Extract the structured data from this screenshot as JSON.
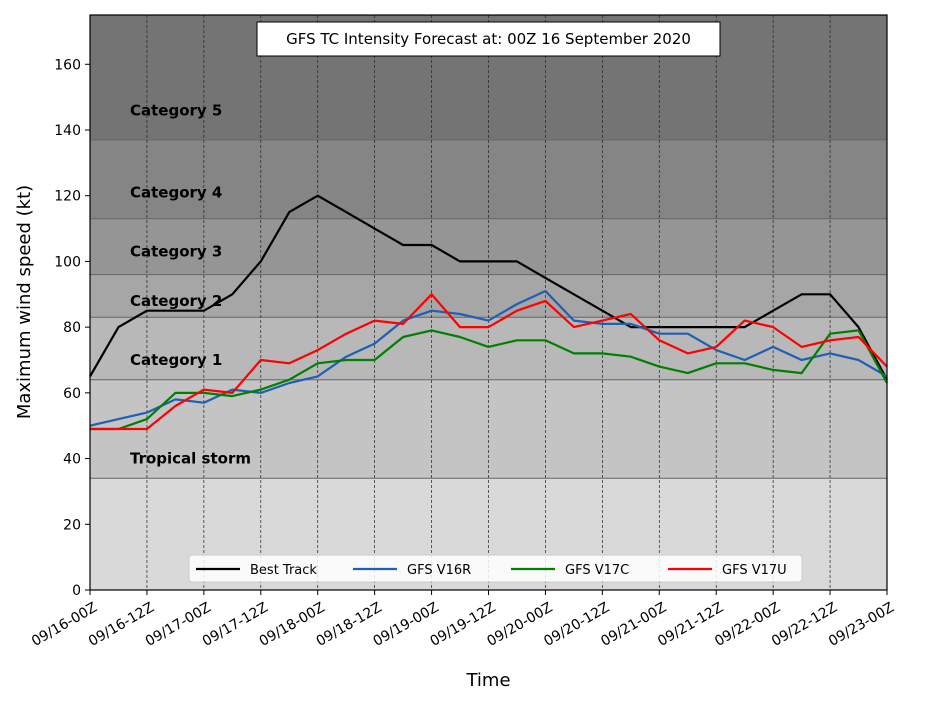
{
  "chart_data": {
    "type": "line",
    "title": "GFS TC Intensity Forecast at: 00Z 16 September 2020",
    "xlabel": "Time",
    "ylabel": "Maximum wind speed (kt)",
    "ylim": [
      0,
      175
    ],
    "yticks": [
      0,
      20,
      40,
      60,
      80,
      100,
      120,
      140,
      160
    ],
    "xticks": [
      "09/16-00Z",
      "09/16-12Z",
      "09/17-00Z",
      "09/17-12Z",
      "09/18-00Z",
      "09/18-12Z",
      "09/19-00Z",
      "09/19-12Z",
      "09/20-00Z",
      "09/20-12Z",
      "09/21-00Z",
      "09/21-12Z",
      "09/22-00Z",
      "09/22-12Z",
      "09/23-00Z"
    ],
    "x_step_hours": 6,
    "grid": "vertical dashed at x ticks",
    "legend_position": "lower-center",
    "categories_bands": [
      {
        "label": "Tropical storm",
        "from": 34,
        "to": 64,
        "color": "#c4c4c4",
        "label_y": 40
      },
      {
        "label": "Category 1",
        "from": 64,
        "to": 83,
        "color": "#b8b8b8",
        "label_y": 70
      },
      {
        "label": "Category 2",
        "from": 83,
        "to": 96,
        "color": "#a6a6a6",
        "label_y": 88
      },
      {
        "label": "Category 3",
        "from": 96,
        "to": 113,
        "color": "#959595",
        "label_y": 103
      },
      {
        "label": "Category 4",
        "from": 113,
        "to": 137,
        "color": "#858585",
        "label_y": 121
      },
      {
        "label": "Category 5",
        "from": 137,
        "to": 175,
        "color": "#747474",
        "label_y": 146
      }
    ],
    "below_ts_color": "#d9d9d9",
    "series": [
      {
        "name": "Best Track",
        "color": "#000000",
        "values": [
          65,
          80,
          85,
          85,
          85,
          90,
          100,
          115,
          120,
          115,
          110,
          105,
          105,
          100,
          100,
          100,
          95,
          90,
          85,
          80,
          80,
          80,
          80,
          80,
          85,
          90,
          90,
          80,
          64
        ]
      },
      {
        "name": "GFS V16R",
        "color": "#1f5fb4",
        "values": [
          50,
          52,
          54,
          58,
          57,
          61,
          60,
          63,
          65,
          71,
          75,
          82,
          85,
          84,
          82,
          87,
          91,
          82,
          81,
          81,
          78,
          78,
          73,
          70,
          74,
          70,
          72,
          70,
          65
        ]
      },
      {
        "name": "GFS V17C",
        "color": "#008000",
        "values": [
          49,
          49,
          52,
          60,
          60,
          59,
          61,
          64,
          69,
          70,
          70,
          77,
          79,
          77,
          74,
          76,
          76,
          72,
          72,
          71,
          68,
          66,
          69,
          69,
          67,
          66,
          78,
          79,
          63
        ]
      },
      {
        "name": "GFS V17U",
        "color": "#ff0000",
        "values": [
          49,
          49,
          49,
          56,
          61,
          60,
          70,
          69,
          73,
          78,
          82,
          81,
          90,
          80,
          80,
          85,
          88,
          80,
          82,
          84,
          76,
          72,
          74,
          82,
          80,
          74,
          76,
          77,
          68
        ]
      }
    ]
  }
}
